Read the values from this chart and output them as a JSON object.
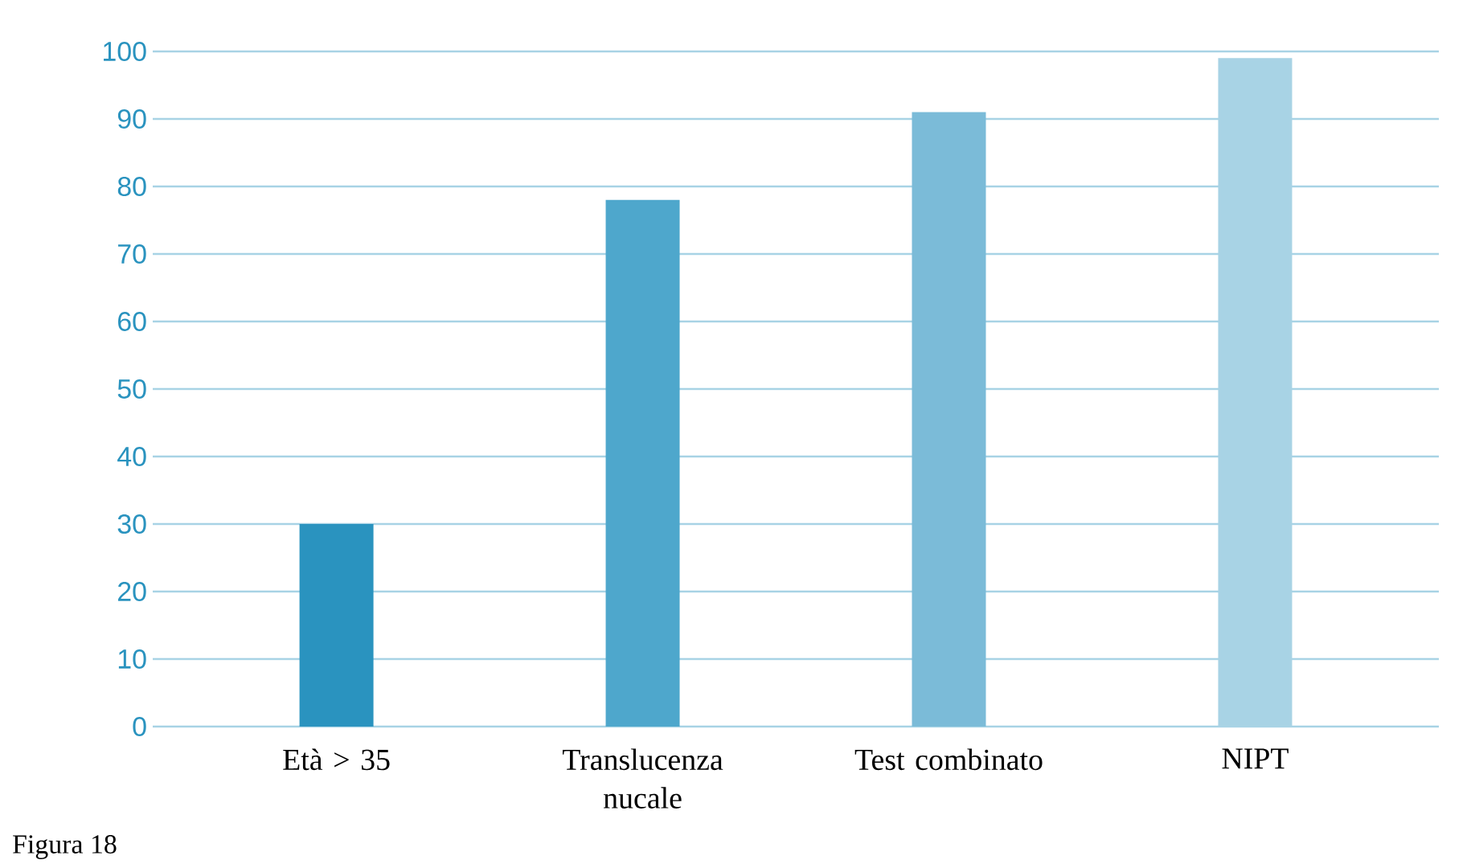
{
  "chart_data": {
    "type": "bar",
    "categories": [
      "Età > 35",
      "Translucenza nucale",
      "Test combinato",
      "NIPT"
    ],
    "values": [
      30,
      78,
      91,
      99
    ],
    "colors": [
      "#2a93bf",
      "#4ea7cc",
      "#7bbbd8",
      "#a8d3e5"
    ],
    "ylim": [
      0,
      100
    ],
    "yticks": [
      0,
      10,
      20,
      30,
      40,
      50,
      60,
      70,
      80,
      90,
      100
    ],
    "grid": "y",
    "annotations": [
      "Figura 18"
    ]
  }
}
